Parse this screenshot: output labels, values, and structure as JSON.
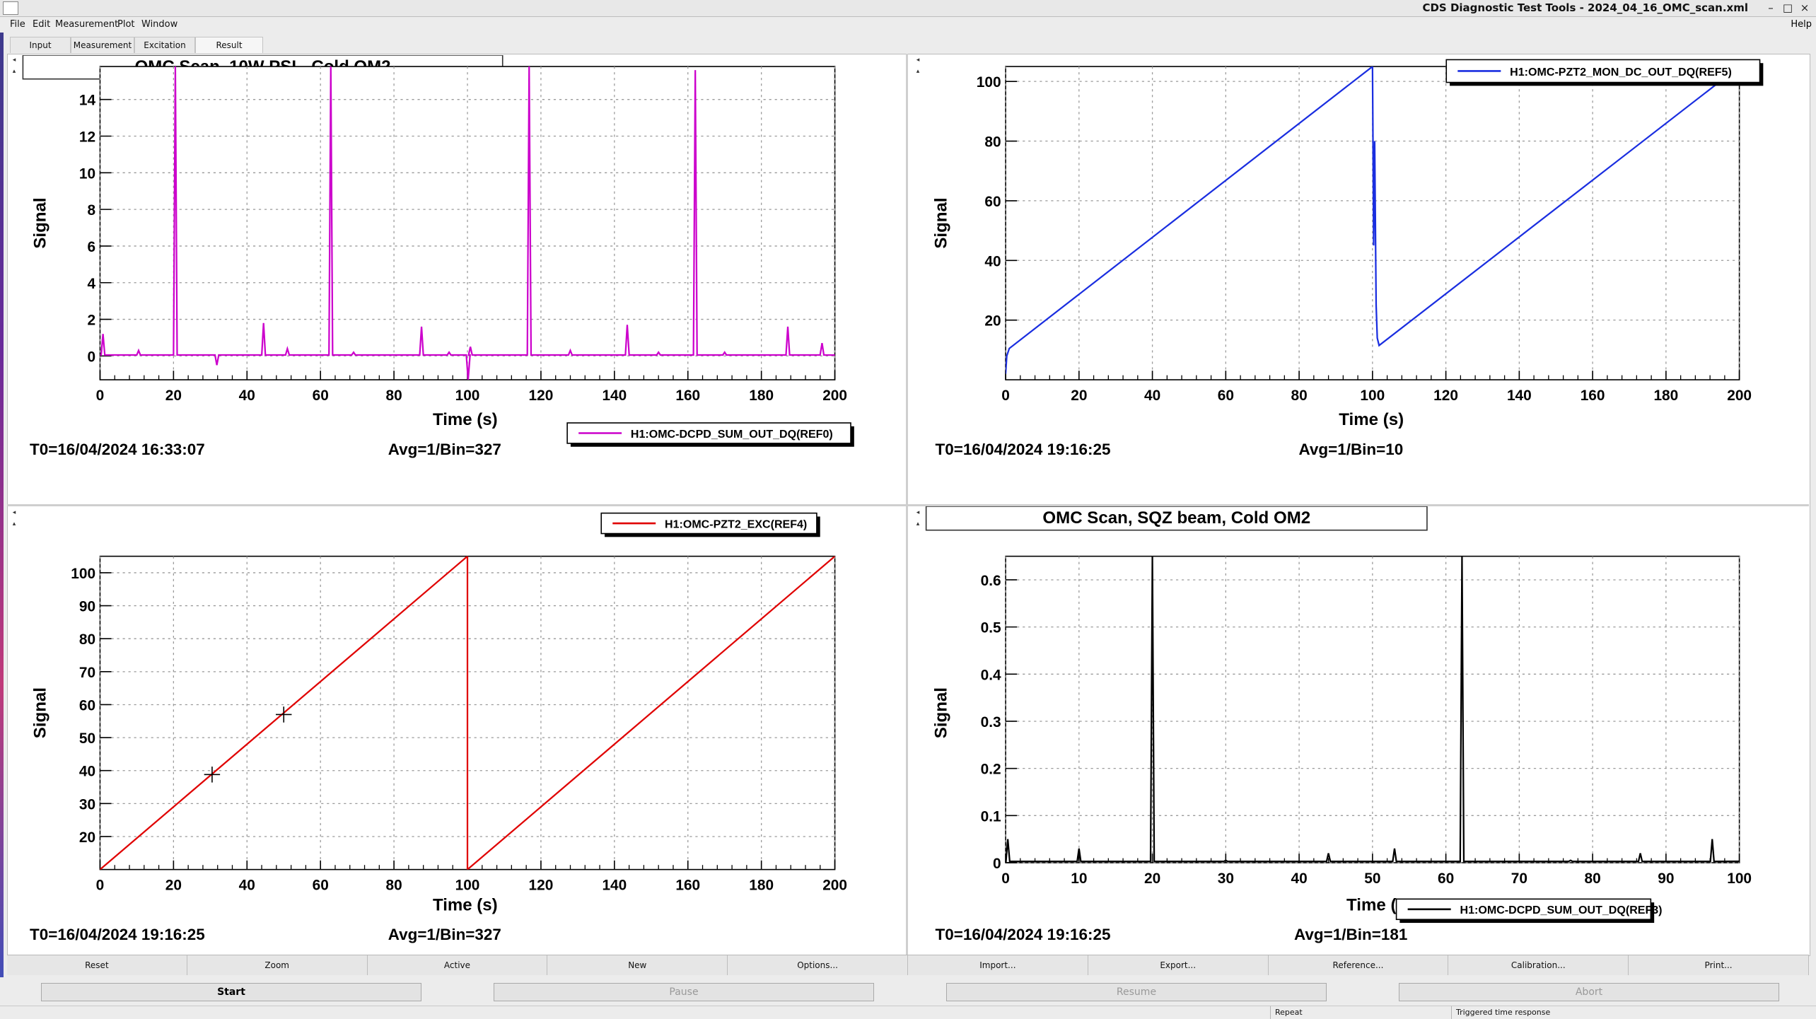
{
  "window": {
    "title": "CDS Diagnostic Test Tools - 2024_04_16_OMC_scan.xml",
    "controls": [
      "–",
      "□",
      "×"
    ]
  },
  "menu": {
    "items": [
      "File",
      "Edit",
      "Measurement",
      "Plot",
      "Window"
    ],
    "help": "Help"
  },
  "tabs": [
    "Input",
    "Measurement",
    "Excitation",
    "Result"
  ],
  "plots": [
    {
      "title": "OMC Scan, 10W PSL, Cold OM2",
      "xlabel": "Time (s)",
      "ylabel": "Signal",
      "legend": "H1:OMC-DCPD_SUM_OUT_DQ(REF0)",
      "t0": "T0=16/04/2024 16:33:07",
      "avg": "Avg=1/Bin=327",
      "color": "#cc00cc"
    },
    {
      "title": "",
      "xlabel": "Time (s)",
      "ylabel": "Signal",
      "legend": "H1:OMC-PZT2_MON_DC_OUT_DQ(REF5)",
      "t0": "T0=16/04/2024 19:16:25",
      "avg": "Avg=1/Bin=10",
      "color": "#1a2ee0"
    },
    {
      "title": "",
      "xlabel": "Time (s)",
      "ylabel": "Signal",
      "legend": "H1:OMC-PZT2_EXC(REF4)",
      "t0": "T0=16/04/2024 19:16:25",
      "avg": "Avg=1/Bin=327",
      "color": "#e00000"
    },
    {
      "title": "OMC Scan, SQZ beam, Cold OM2",
      "xlabel": "Time (",
      "ylabel": "Signal",
      "legend": "H1:OMC-DCPD_SUM_OUT_DQ(REF3)",
      "t0": "T0=16/04/2024 19:16:25",
      "avg": "Avg=1/Bin=181",
      "color": "#000000"
    }
  ],
  "chart_data": [
    {
      "type": "line",
      "title": "OMC Scan, 10W PSL, Cold OM2",
      "xlabel": "Time (s)",
      "ylabel": "Signal",
      "xlim": [
        0,
        200
      ],
      "ylim": [
        -1.3,
        15.8
      ],
      "xticks": [
        0,
        20,
        40,
        60,
        80,
        100,
        120,
        140,
        160,
        180,
        200
      ],
      "yticks": [
        0,
        2,
        4,
        6,
        8,
        10,
        12,
        14
      ],
      "grid": true,
      "series": [
        {
          "name": "H1:OMC-DCPD_SUM_OUT_DQ(REF0)",
          "baseline": 0.05,
          "peaks": [
            [
              0.8,
              1.2
            ],
            [
              10.5,
              0.3
            ],
            [
              20.5,
              15.8
            ],
            [
              31.8,
              -0.5
            ],
            [
              44.5,
              1.8
            ],
            [
              51,
              0.4
            ],
            [
              62.8,
              15.8
            ],
            [
              69,
              0.2
            ],
            [
              87.5,
              1.6
            ],
            [
              95,
              0.2
            ],
            [
              100.2,
              -1.3
            ],
            [
              100.8,
              0.5
            ],
            [
              116.8,
              15.8
            ],
            [
              128,
              0.3
            ],
            [
              143.5,
              1.7
            ],
            [
              152,
              0.2
            ],
            [
              162,
              15.6
            ],
            [
              170,
              0.2
            ],
            [
              187.2,
              1.6
            ],
            [
              196.5,
              0.7
            ]
          ]
        }
      ],
      "legend_position": "bottom-right"
    },
    {
      "type": "line",
      "xlabel": "Time (s)",
      "ylabel": "Signal",
      "xlim": [
        0,
        200
      ],
      "ylim": [
        0,
        105
      ],
      "xticks": [
        0,
        20,
        40,
        60,
        80,
        100,
        120,
        140,
        160,
        180,
        200
      ],
      "yticks": [
        20,
        40,
        60,
        80,
        100
      ],
      "grid": true,
      "series": [
        {
          "name": "H1:OMC-PZT2_MON_DC_OUT_DQ(REF5)",
          "x": [
            0,
            0.3,
            1,
            100,
            100.3,
            100.6,
            101,
            101.3,
            101.8,
            200
          ],
          "y": [
            2,
            8,
            10.5,
            105,
            45,
            80,
            25,
            14,
            11.5,
            105
          ]
        }
      ],
      "legend_position": "top-right"
    },
    {
      "type": "line",
      "xlabel": "Time (s)",
      "ylabel": "Signal",
      "xlim": [
        0,
        200
      ],
      "ylim": [
        10,
        105
      ],
      "xticks": [
        0,
        20,
        40,
        60,
        80,
        100,
        120,
        140,
        160,
        180,
        200
      ],
      "yticks": [
        20,
        30,
        40,
        50,
        60,
        70,
        80,
        90,
        100
      ],
      "grid": true,
      "series": [
        {
          "name": "H1:OMC-PZT2_EXC(REF4)",
          "x": [
            0,
            100,
            100,
            200
          ],
          "y": [
            10,
            105,
            10,
            105
          ]
        }
      ],
      "markers": [
        [
          30.5,
          38.8
        ],
        [
          50,
          57
        ]
      ],
      "legend_position": "top-right"
    },
    {
      "type": "line",
      "title": "OMC Scan, SQZ beam, Cold OM2",
      "xlabel": "Time (",
      "ylabel": "Signal",
      "xlim": [
        0,
        100
      ],
      "ylim": [
        0,
        0.65
      ],
      "xticks": [
        0,
        10,
        20,
        30,
        40,
        50,
        60,
        70,
        80,
        90,
        100
      ],
      "yticks": [
        0,
        0.1,
        0.2,
        0.3,
        0.4,
        0.5,
        0.6
      ],
      "grid": true,
      "series": [
        {
          "name": "H1:OMC-DCPD_SUM_OUT_DQ(REF3)",
          "baseline": 0.003,
          "peaks": [
            [
              0.3,
              0.05
            ],
            [
              10,
              0.03
            ],
            [
              20,
              0.65
            ],
            [
              30,
              0.005
            ],
            [
              44,
              0.02
            ],
            [
              53,
              0.03
            ],
            [
              62.2,
              0.65
            ],
            [
              77,
              0.005
            ],
            [
              86.5,
              0.02
            ],
            [
              96.3,
              0.05
            ]
          ]
        }
      ],
      "legend_position": "bottom-right"
    }
  ],
  "toolbar": [
    "Reset",
    "Zoom",
    "Active",
    "New",
    "Options...",
    "Import...",
    "Export...",
    "Reference...",
    "Calibration...",
    "Print..."
  ],
  "controls": [
    "Start",
    "Pause",
    "Resume",
    "Abort"
  ],
  "status": {
    "repeat": "Repeat",
    "mode": "Triggered time response"
  }
}
